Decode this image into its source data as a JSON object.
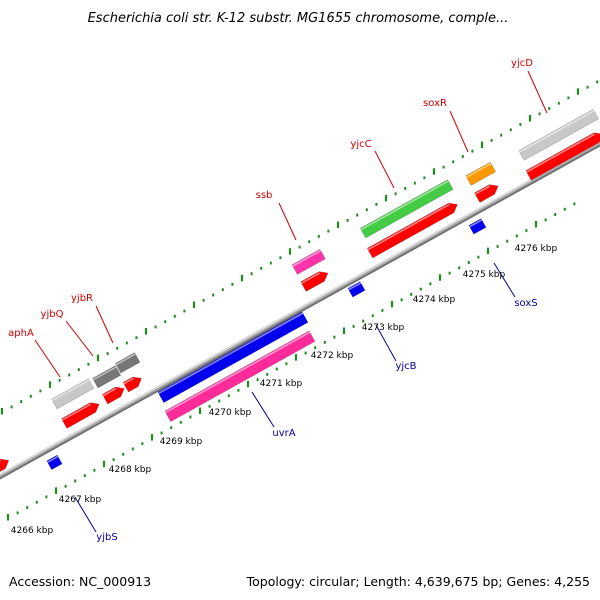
{
  "title": "Escherichia coli str. K-12 substr. MG1655 chromosome, comple...",
  "footer": {
    "accession": "Accession: NC_000913",
    "topology": "Topology: circular; Length: 4,639,675 bp; Genes: 4,255"
  },
  "colors": {
    "backbone": "#8c8c8c",
    "tick_green": "#1e8c1e",
    "label_red": "#cc0000",
    "label_blue": "#000099"
  },
  "scale": [
    "4266 kbp",
    "4267 kbp",
    "4268 kbp",
    "4269 kbp",
    "4270 kbp",
    "4271 kbp",
    "4272 kbp",
    "4273 kbp",
    "4274 kbp",
    "4275 kbp",
    "4276 kbp"
  ],
  "genes_top": [
    {
      "name": "aphA",
      "color": "#c8c8c8"
    },
    {
      "name": "yjbQ",
      "color": "#777777"
    },
    {
      "name": "yjbR",
      "color": "#777777"
    },
    {
      "name": "ssb",
      "color": "#ff33aa"
    },
    {
      "name": "yjcC",
      "color": "#44cc44"
    },
    {
      "name": "soxR",
      "color": "#ff9900"
    },
    {
      "name": "yjcD",
      "color": "#c8c8c8"
    }
  ],
  "genes_bottom": [
    {
      "name": "yjbS",
      "color": "#0000ee"
    },
    {
      "name": "uvrA",
      "color": "#0000ee"
    },
    {
      "name": "yjcB",
      "color": "#0000ee"
    },
    {
      "name": "soxS",
      "color": "#0000ee"
    }
  ]
}
